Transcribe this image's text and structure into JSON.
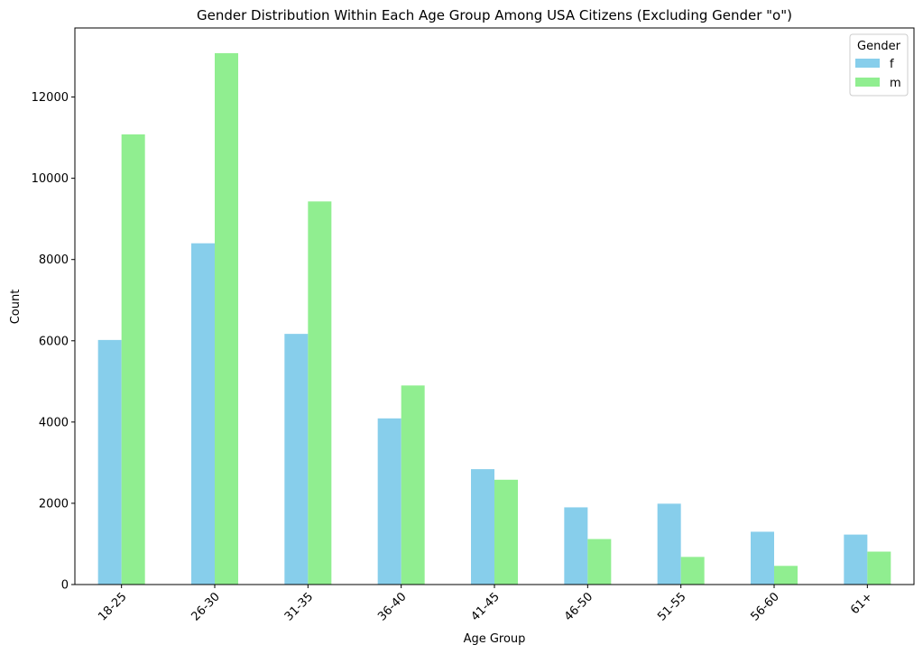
{
  "chart_data": {
    "type": "bar",
    "title": "Gender Distribution Within Each Age Group Among USA Citizens (Excluding Gender \"o\")",
    "xlabel": "Age Group",
    "ylabel": "Count",
    "categories": [
      "18-25",
      "26-30",
      "31-35",
      "36-40",
      "41-45",
      "46-50",
      "51-55",
      "56-60",
      "61+"
    ],
    "series": [
      {
        "name": "f",
        "color": "#87ceeb",
        "values": [
          6020,
          8400,
          6170,
          4090,
          2840,
          1900,
          1990,
          1300,
          1230
        ]
      },
      {
        "name": "m",
        "color": "#90ee90",
        "values": [
          11080,
          13080,
          9430,
          4900,
          2580,
          1120,
          680,
          460,
          810
        ]
      }
    ],
    "ylim": [
      0,
      13700
    ],
    "yticks": [
      0,
      2000,
      4000,
      6000,
      8000,
      10000,
      12000
    ],
    "grid": false,
    "legend": {
      "title": "Gender",
      "placement": "top-right"
    }
  }
}
